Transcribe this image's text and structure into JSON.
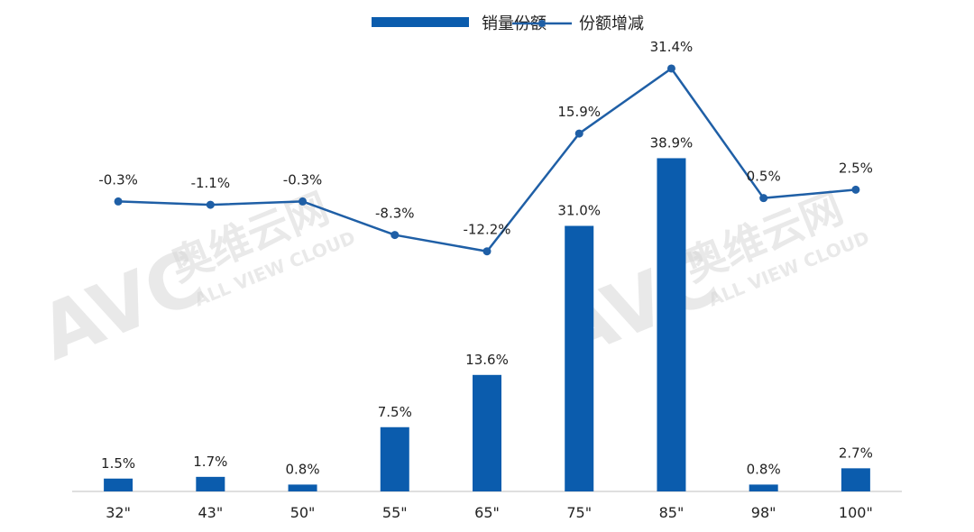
{
  "chart_data": {
    "type": "bar",
    "categories": [
      "32\"",
      "43\"",
      "50\"",
      "55\"",
      "65\"",
      "75\"",
      "85\"",
      "98\"",
      "100\""
    ],
    "series": [
      {
        "name": "销量份额",
        "kind": "bar",
        "color": "#0B5CAD",
        "values": [
          1.5,
          1.7,
          0.8,
          7.5,
          13.6,
          31.0,
          38.9,
          0.8,
          2.7
        ],
        "labels": [
          "1.5%",
          "1.7%",
          "0.8%",
          "7.5%",
          "13.6%",
          "31.0%",
          "38.9%",
          "0.8%",
          "2.7%"
        ]
      },
      {
        "name": "份额增减",
        "kind": "line",
        "color": "#1F5FA6",
        "values": [
          -0.3,
          -1.1,
          -0.3,
          -8.3,
          -12.2,
          15.9,
          31.4,
          0.5,
          2.5
        ],
        "labels": [
          "-0.3%",
          "-1.1%",
          "-0.3%",
          "-8.3%",
          "-12.2%",
          "15.9%",
          "31.4%",
          "0.5%",
          "2.5%"
        ]
      }
    ],
    "legend_position": "top-center",
    "grid": false
  },
  "watermark": {
    "brand": "AVC",
    "cn": "奥维云网",
    "en": "ALL VIEW CLOUD"
  }
}
